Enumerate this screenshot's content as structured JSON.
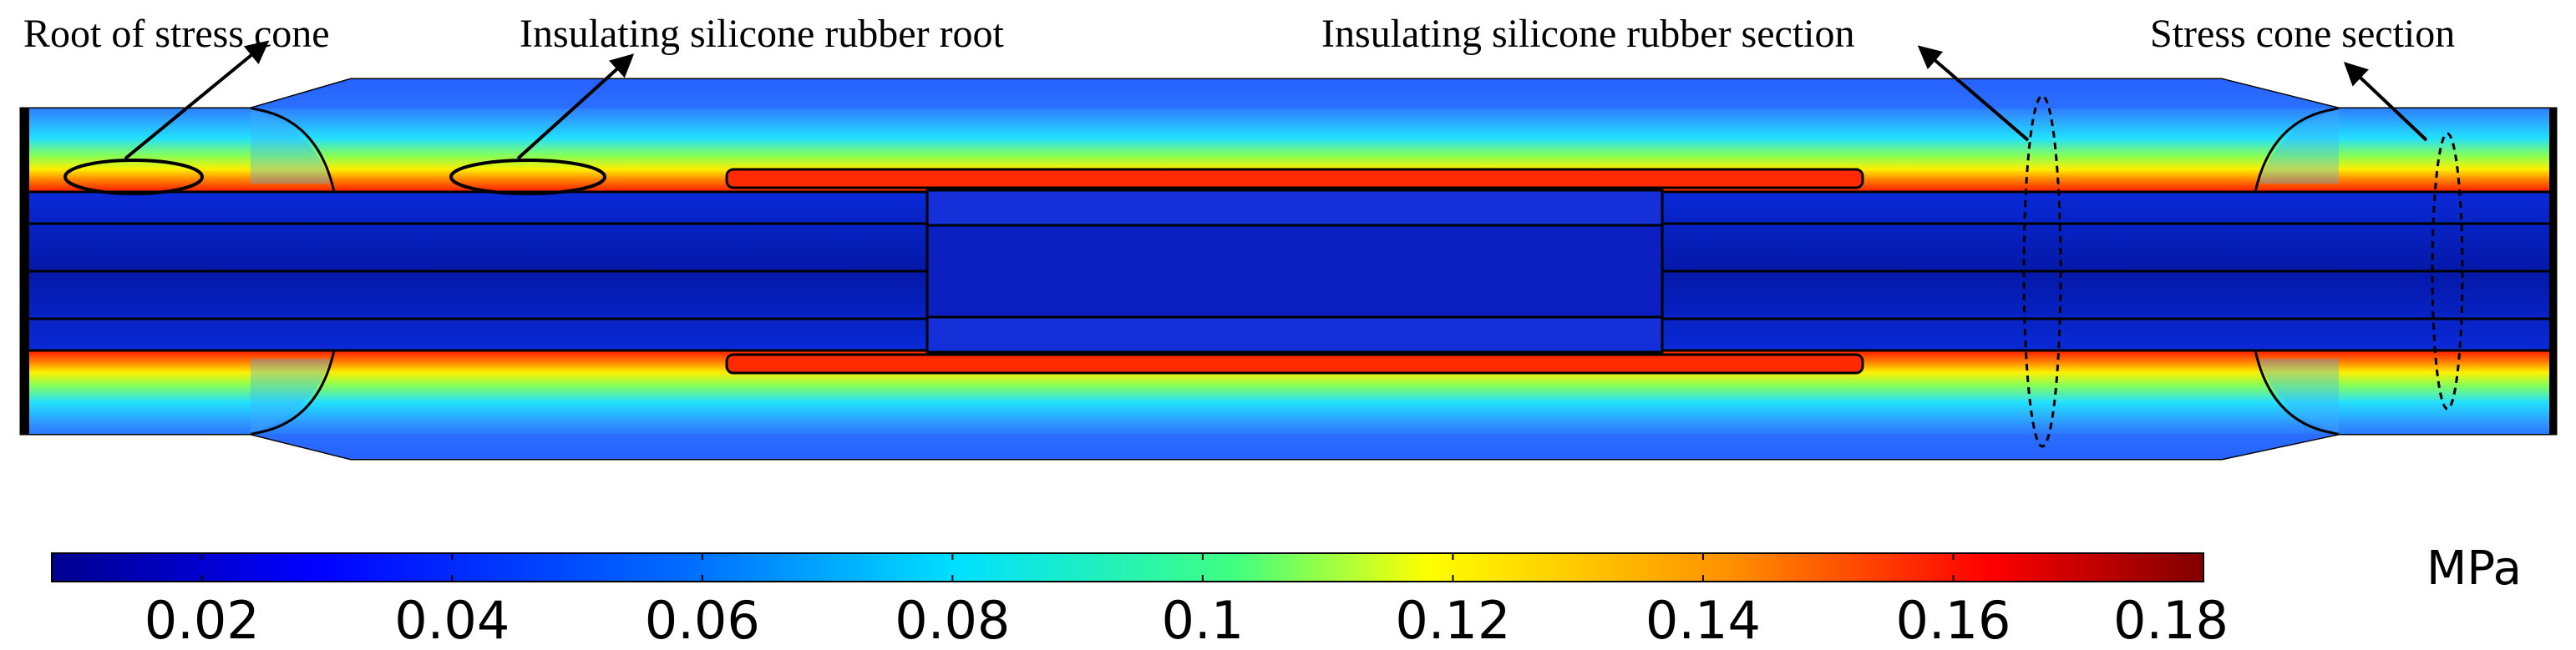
{
  "figure": {
    "annotations": [
      {
        "id": "root-stress-cone",
        "text": "Root of stress cone"
      },
      {
        "id": "insulating-root",
        "text": "Insulating silicone rubber root"
      },
      {
        "id": "insulating-section",
        "text": "Insulating silicone rubber section"
      },
      {
        "id": "stress-cone-section",
        "text": "Stress cone section"
      }
    ],
    "colorbar": {
      "unit": "MPa",
      "min": 0.008,
      "max": 0.18,
      "ticks": [
        "0.02",
        "0.04",
        "0.06",
        "0.08",
        "0.1",
        "0.12",
        "0.14",
        "0.16",
        "0.18"
      ],
      "tick_values": [
        0.02,
        0.04,
        0.06,
        0.08,
        0.1,
        0.12,
        0.14,
        0.16,
        0.18
      ],
      "colors": [
        "#00008f",
        "#0000ff",
        "#00a0ff",
        "#00ffff",
        "#40ff80",
        "#ffff00",
        "#ff9000",
        "#ff0000",
        "#800000"
      ]
    }
  }
}
